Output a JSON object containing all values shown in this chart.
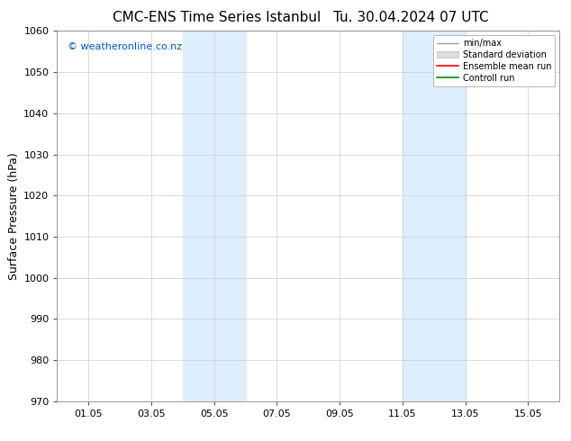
{
  "title_left": "CMC-ENS Time Series Istanbul",
  "title_right": "Tu. 30.04.2024 07 UTC",
  "ylabel": "Surface Pressure (hPa)",
  "ylim": [
    970,
    1060
  ],
  "yticks": [
    970,
    980,
    990,
    1000,
    1010,
    1020,
    1030,
    1040,
    1050,
    1060
  ],
  "xtick_labels": [
    "01.05",
    "03.05",
    "05.05",
    "07.05",
    "09.05",
    "11.05",
    "13.05",
    "15.05"
  ],
  "xtick_positions": [
    1,
    3,
    5,
    7,
    9,
    11,
    13,
    15
  ],
  "xlim": [
    0.0,
    16.0
  ],
  "shaded_regions": [
    {
      "start": 4.0,
      "end": 6.0,
      "color": "#ddeeff"
    },
    {
      "start": 11.0,
      "end": 13.0,
      "color": "#ddeeff"
    }
  ],
  "watermark": "© weatheronline.co.nz",
  "watermark_color": "#0055cc",
  "legend_labels": [
    "min/max",
    "Standard deviation",
    "Ensemble mean run",
    "Controll run"
  ],
  "legend_colors": [
    "#999999",
    "#cccccc",
    "#ff0000",
    "#008800"
  ],
  "background_color": "#ffffff",
  "plot_bg_color": "#ffffff",
  "grid_color": "#cccccc",
  "tick_fontsize": 8,
  "label_fontsize": 9,
  "title_fontsize": 11
}
